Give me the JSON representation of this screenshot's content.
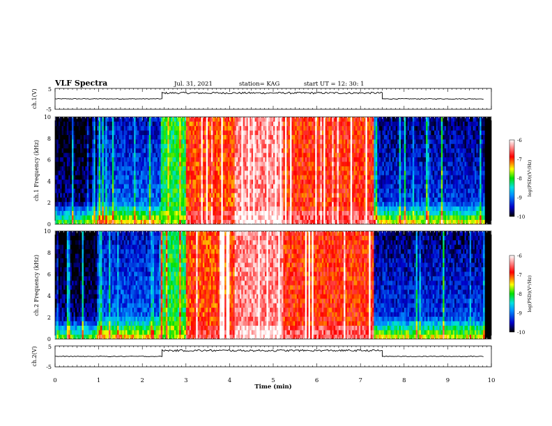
{
  "header": {
    "title": "VLF Spectra",
    "date": "Jul. 31, 2021",
    "station": "station= KAG",
    "start": "start UT = 12: 30: 1"
  },
  "colors": {
    "spec_scale": [
      "#000000",
      "#0000c8",
      "#0090ff",
      "#00e0e0",
      "#00e000",
      "#ffff00",
      "#ff0000",
      "#ffffff"
    ],
    "trace": "#000000"
  },
  "chart_data": [
    {
      "type": "line",
      "title": "",
      "ylabel": "ch.1(V)",
      "xlabel": "",
      "xlim": [
        0,
        10
      ],
      "ylim": [
        -5,
        5
      ],
      "yticks": [
        "5",
        "-5"
      ],
      "segments": [
        {
          "x": [
            0.0,
            2.45
          ],
          "y": 0.0
        },
        {
          "x": [
            2.45,
            7.5
          ],
          "y": 2.8
        },
        {
          "x": [
            7.5,
            9.82
          ],
          "y": 0.0
        }
      ]
    },
    {
      "type": "heatmap",
      "title": "",
      "ylabel": "ch.1 Frequency (kHz)",
      "xlim": [
        0,
        10
      ],
      "ylim": [
        0,
        10
      ],
      "yticks": [
        "0",
        "2",
        "4",
        "6",
        "8",
        "10"
      ],
      "colorbar": {
        "label": "log(PSD)(V²/Hz)",
        "ticks": [
          "-6",
          "-7",
          "-8",
          "-9",
          "-10"
        ],
        "range": [
          -10,
          -6
        ]
      },
      "blocks": [
        {
          "x": [
            0.0,
            0.95
          ],
          "level": -9.6
        },
        {
          "x": [
            0.95,
            2.4
          ],
          "level": -9.0
        },
        {
          "x": [
            2.4,
            3.0
          ],
          "level": -8.1
        },
        {
          "x": [
            3.0,
            4.1
          ],
          "level": -7.0
        },
        {
          "x": [
            4.1,
            5.2
          ],
          "level": -6.4
        },
        {
          "x": [
            5.2,
            7.3
          ],
          "level": -6.9
        },
        {
          "x": [
            7.3,
            9.82
          ],
          "level": -9.2
        }
      ]
    },
    {
      "type": "heatmap",
      "title": "",
      "ylabel": "ch.2 Frequency (kHz)",
      "xlim": [
        0,
        10
      ],
      "ylim": [
        0,
        10
      ],
      "yticks": [
        "0",
        "2",
        "4",
        "6",
        "8",
        "10"
      ],
      "colorbar": {
        "label": "log(PSD)(V²/Hz)",
        "ticks": [
          "-6",
          "-7",
          "-8",
          "-9",
          "-10"
        ],
        "range": [
          -10,
          -6
        ]
      },
      "blocks": [
        {
          "x": [
            0.0,
            0.95
          ],
          "level": -9.6
        },
        {
          "x": [
            0.95,
            2.4
          ],
          "level": -9.0
        },
        {
          "x": [
            2.4,
            3.0
          ],
          "level": -8.1
        },
        {
          "x": [
            3.0,
            4.1
          ],
          "level": -7.0
        },
        {
          "x": [
            4.1,
            5.2
          ],
          "level": -6.4
        },
        {
          "x": [
            5.2,
            7.3
          ],
          "level": -6.9
        },
        {
          "x": [
            7.3,
            9.82
          ],
          "level": -9.2
        }
      ]
    },
    {
      "type": "line",
      "title": "",
      "ylabel": "ch.2(V)",
      "xlabel": "Time (min)",
      "xlim": [
        0,
        10
      ],
      "ylim": [
        -5,
        5
      ],
      "yticks": [
        "5",
        "-5"
      ],
      "xticks": [
        "0",
        "1",
        "2",
        "3",
        "4",
        "5",
        "6",
        "7",
        "8",
        "9",
        "10"
      ],
      "segments": [
        {
          "x": [
            0.0,
            2.45
          ],
          "y": 0.0
        },
        {
          "x": [
            2.45,
            7.5
          ],
          "y": 2.8
        },
        {
          "x": [
            7.5,
            9.82
          ],
          "y": 0.0
        }
      ]
    }
  ]
}
